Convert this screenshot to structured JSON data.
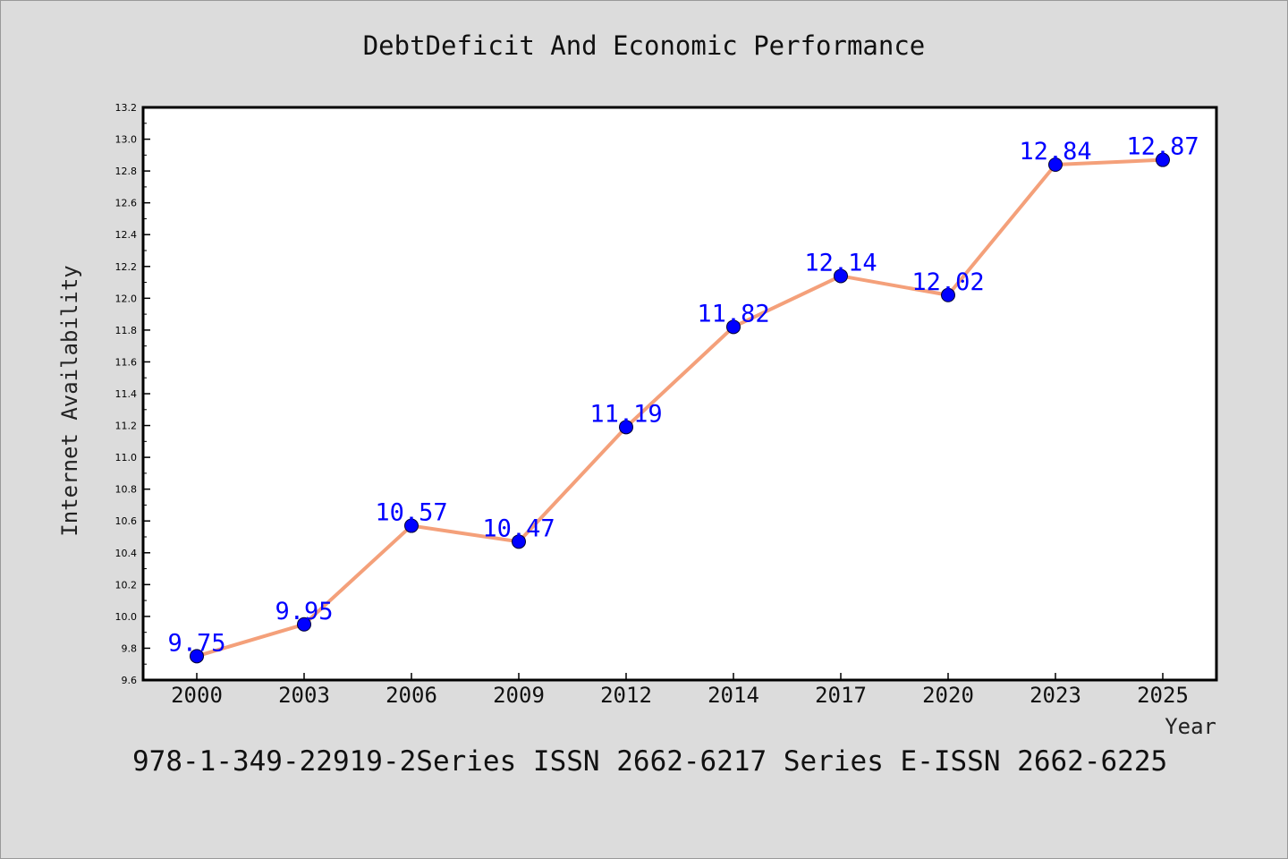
{
  "chart_data": {
    "type": "line",
    "title": "DebtDeficit And Economic Performance",
    "xlabel": "Year",
    "ylabel": "Internet Availability",
    "categories": [
      "2000",
      "2003",
      "2006",
      "2009",
      "2012",
      "2014",
      "2017",
      "2020",
      "2023",
      "2025"
    ],
    "values": [
      9.75,
      9.95,
      10.57,
      10.47,
      11.19,
      11.82,
      12.14,
      12.02,
      12.84,
      12.87
    ],
    "data_labels": [
      "9.75",
      "9.95",
      "10.57",
      "10.47",
      "11.19",
      "11.82",
      "12.14",
      "12.02",
      "12.84",
      "12.87"
    ],
    "ylim": [
      9.6,
      13.2
    ],
    "yticks": [
      "9.6",
      "9.8",
      "10.0",
      "10.2",
      "10.4",
      "10.6",
      "10.8",
      "11.0",
      "11.2",
      "11.4",
      "11.6",
      "11.8",
      "12.0",
      "12.2",
      "12.4",
      "12.6",
      "12.8",
      "13.0",
      "13.2"
    ],
    "grid": false,
    "line_color": "#f4a07a",
    "marker_color": "#0000ff",
    "label_color": "#0000ff"
  },
  "footer": {
    "text": "978-1-349-22919-2Series ISSN 2662-6217 Series E-ISSN 2662-6225"
  }
}
